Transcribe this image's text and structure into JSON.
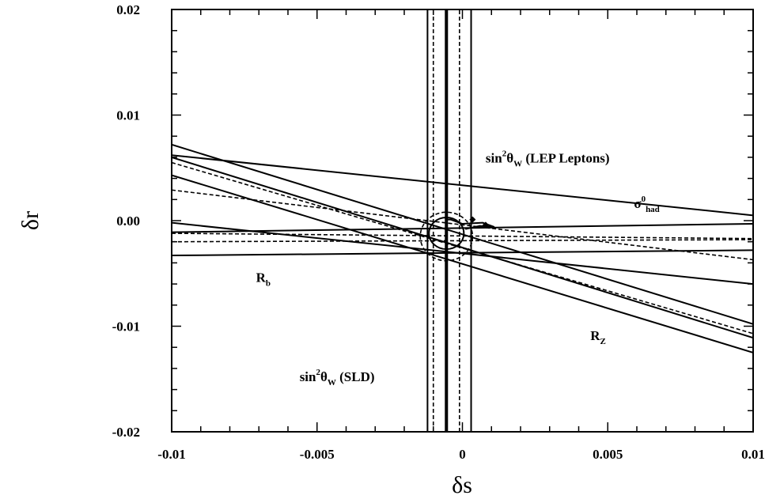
{
  "chart_data": {
    "type": "line",
    "title": "",
    "xlabel": "δs",
    "ylabel": "δr",
    "xlim": [
      -0.01,
      0.01
    ],
    "ylim": [
      -0.02,
      0.02
    ],
    "xticks": [
      -0.01,
      -0.005,
      0,
      0.005,
      0.01
    ],
    "xtick_labels": [
      "-0.01",
      "-0.005",
      "0",
      "0.005",
      "0.01"
    ],
    "yticks": [
      -0.02,
      -0.01,
      0,
      0.01,
      0.02
    ],
    "ytick_labels": [
      "-0.02",
      "-0.01",
      "0.00",
      "0.01",
      "0.02"
    ],
    "grid": false,
    "series": [
      {
        "style": "solid",
        "x": [
          -0.01,
          0.01
        ],
        "y": [
          0.0062,
          0.0005
        ]
      },
      {
        "style": "solid",
        "x": [
          -0.01,
          0.01
        ],
        "y": [
          -0.0011,
          -0.0003
        ]
      },
      {
        "style": "solid",
        "x": [
          -0.01,
          0.01
        ],
        "y": [
          -0.0002,
          -0.006
        ]
      },
      {
        "style": "solid",
        "x": [
          -0.01,
          0.01
        ],
        "y": [
          -0.0033,
          -0.0028
        ]
      },
      {
        "style": "dashed",
        "x": [
          -0.01,
          0.01
        ],
        "y": [
          -0.0012,
          -0.0017
        ]
      },
      {
        "style": "dashed",
        "x": [
          -0.01,
          0.01
        ],
        "y": [
          -0.002,
          -0.0018
        ]
      },
      {
        "style": "solid",
        "x": [
          -0.01,
          0.01
        ],
        "y": [
          0.0072,
          -0.0098
        ]
      },
      {
        "style": "solid",
        "x": [
          -0.01,
          0.01
        ],
        "y": [
          0.0043,
          -0.0125
        ]
      },
      {
        "style": "dashed",
        "x": [
          -0.01,
          0.01
        ],
        "y": [
          0.0055,
          -0.0107
        ]
      },
      {
        "style": "solid",
        "x": [
          -0.01,
          0.01
        ],
        "y": [
          0.006,
          -0.0111
        ]
      },
      {
        "style": "dashed",
        "x": [
          -0.01,
          0.01
        ],
        "y": [
          0.0029,
          -0.0037
        ]
      },
      {
        "style": "solid",
        "x": [
          -0.0012,
          -0.0012
        ],
        "y": [
          -0.02,
          0.02
        ]
      },
      {
        "style": "solid",
        "x": [
          0.0003,
          0.0003
        ],
        "y": [
          -0.02,
          0.02
        ]
      },
      {
        "style": "dashed",
        "x": [
          -0.001,
          -0.001
        ],
        "y": [
          -0.02,
          0.02
        ]
      },
      {
        "style": "dashed",
        "x": [
          -0.0001,
          -0.0001
        ],
        "y": [
          -0.02,
          0.02
        ]
      },
      {
        "style": "thick",
        "x": [
          -0.00055,
          -0.00055
        ],
        "y": [
          -0.02,
          0.02
        ]
      },
      {
        "style": "solid",
        "x": [
          -0.0006,
          -0.0004,
          0.0,
          0.0007,
          0.0011
        ],
        "y": [
          0.0001,
          0.0001,
          -0.0003,
          -0.0002,
          -0.0006
        ]
      },
      {
        "style": "solid",
        "x": [
          0.0001,
          0.0006,
          0.0011
        ],
        "y": [
          -0.0008,
          -0.0005,
          -0.0006
        ]
      }
    ],
    "ellipses": [
      {
        "style": "solid",
        "cx": -0.00055,
        "cy": -0.0012,
        "rx": 0.0006,
        "ry": 0.0015
      },
      {
        "style": "dashed",
        "cx": -0.00055,
        "cy": -0.0015,
        "rx": 0.0009,
        "ry": 0.0023
      }
    ],
    "markers": [
      {
        "x": 0.00035,
        "y": 0.0001
      },
      {
        "x": 0.0008,
        "y": -0.0004
      }
    ],
    "annotations": [
      {
        "id": "lep",
        "base": "sin",
        "sup": "2",
        "main": "θ",
        "sub": "W",
        "rest": " (LEP Leptons)",
        "x": 0.0008,
        "y": 0.0055
      },
      {
        "id": "sld",
        "base": "sin",
        "sup": "2",
        "main": "θ",
        "sub": "W",
        "rest": " (SLD)",
        "x": -0.0056,
        "y": -0.0152
      },
      {
        "id": "sigma",
        "base": "σ",
        "sup": "0",
        "main": "",
        "sub": "had",
        "rest": "",
        "x": 0.0059,
        "y": 0.0012
      },
      {
        "id": "rb",
        "base": "R",
        "sup": "",
        "main": "",
        "sub": "b",
        "rest": "",
        "x": -0.0071,
        "y": -0.0058
      },
      {
        "id": "rz",
        "base": "R",
        "sup": "",
        "main": "",
        "sub": "Z",
        "rest": "",
        "x": 0.0044,
        "y": -0.0113
      }
    ]
  }
}
